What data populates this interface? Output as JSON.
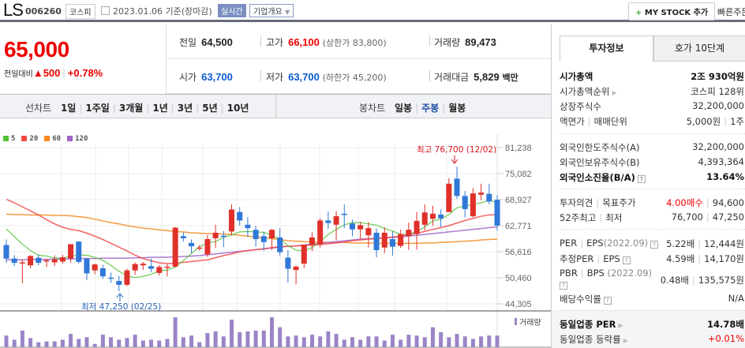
{
  "header": {
    "ticker": "LS",
    "code": "006260",
    "market": "코스피",
    "date": "2023.01.06",
    "date_suffix": "기준(장마감)",
    "realtime_label": "실시간",
    "company_label": "기업개요",
    "mystock_plus": "+",
    "mystock_label": "MY STOCK 추가",
    "quick_order": "빠른주문"
  },
  "price": {
    "current": "65,000",
    "change_label": "전일대비",
    "change_arrow": "▲",
    "change": "500",
    "change_pct": "+0.78%",
    "accent_color": "#e00000"
  },
  "summary": {
    "prev_label": "전일",
    "prev": "64,500",
    "high_label": "고가",
    "high": "66,100",
    "upper_limit_label": "(상한가",
    "upper_limit": "83,800)",
    "volume_label": "거래량",
    "volume": "89,473",
    "open_label": "시가",
    "open": "63,700",
    "low_label": "저가",
    "low": "63,700",
    "lower_limit_label": "(하한가",
    "lower_limit": "45,200)",
    "amount_label": "거래대금",
    "amount": "5,829",
    "amount_unit": "백만"
  },
  "chart_tabs": {
    "line_label": "선차트",
    "line_periods": [
      "1일",
      "1주일",
      "3개월",
      "1년",
      "3년",
      "5년",
      "10년"
    ],
    "candle_label": "봉차트",
    "candle_periods": [
      "일봉",
      "주봉",
      "월봉"
    ],
    "active_candle": "주봉"
  },
  "chart_data": {
    "type": "candlestick",
    "title": "LS 주봉",
    "legend": [
      {
        "name": "5",
        "color": "#52c234"
      },
      {
        "name": "20",
        "color": "#f04848"
      },
      {
        "name": "60",
        "color": "#f5891f"
      },
      {
        "name": "120",
        "color": "#a062c8"
      }
    ],
    "y_ticks": [
      "81,238",
      "75,082",
      "68,927",
      "62,771",
      "56,616",
      "50,460",
      "44,305"
    ],
    "ylim": [
      44305,
      81238
    ],
    "high_annotation": "최고 76,700 (12/02)",
    "low_annotation": "최저 47,250 (02/25)",
    "volume_label": "거래량",
    "up_color": "#e0302a",
    "down_color": "#2f78d8",
    "volume_color": "#9b84c6",
    "candles": [
      [
        58200,
        59500,
        54000,
        55000
      ],
      [
        55000,
        55800,
        53200,
        54000
      ],
      [
        54000,
        54700,
        49200,
        54100
      ],
      [
        53400,
        55800,
        52700,
        55600
      ],
      [
        55200,
        56000,
        53400,
        54000
      ],
      [
        54300,
        55000,
        53000,
        54600
      ],
      [
        54100,
        55800,
        53200,
        54800
      ],
      [
        54300,
        55900,
        53800,
        55300
      ],
      [
        55000,
        58000,
        54000,
        58400
      ],
      [
        59000,
        59100,
        53800,
        54200
      ],
      [
        55000,
        55200,
        49900,
        51500
      ],
      [
        52200,
        53800,
        51300,
        53600
      ],
      [
        52700,
        53500,
        50200,
        50800
      ],
      [
        50500,
        51700,
        49300,
        50300
      ],
      [
        49700,
        50900,
        47250,
        48800
      ],
      [
        48800,
        52600,
        48500,
        52200
      ],
      [
        52200,
        54100,
        51200,
        53700
      ],
      [
        53400,
        54200,
        52300,
        53800
      ],
      [
        53200,
        55000,
        51800,
        52600
      ],
      [
        51600,
        53500,
        51000,
        53000
      ],
      [
        53000,
        53700,
        50800,
        53100
      ],
      [
        53100,
        62500,
        52900,
        62300
      ],
      [
        60300,
        61200,
        59000,
        59800
      ],
      [
        58700,
        59500,
        56300,
        57900
      ],
      [
        57400,
        58200,
        56900,
        57600
      ],
      [
        56000,
        60500,
        55400,
        59600
      ],
      [
        59800,
        63000,
        57500,
        61100
      ],
      [
        60400,
        61500,
        57700,
        60200
      ],
      [
        61400,
        67800,
        60500,
        66600
      ],
      [
        66000,
        67200,
        62800,
        64000
      ],
      [
        63000,
        64800,
        60100,
        62200
      ],
      [
        61800,
        62700,
        57800,
        59600
      ],
      [
        60300,
        61400,
        56800,
        58900
      ],
      [
        59800,
        62000,
        57000,
        61800
      ],
      [
        60000,
        62200,
        55700,
        56500
      ],
      [
        55200,
        57000,
        49300,
        52600
      ],
      [
        52300,
        53300,
        48900,
        53100
      ],
      [
        53800,
        58000,
        52800,
        58300
      ],
      [
        58200,
        61200,
        56800,
        60000
      ],
      [
        58400,
        64500,
        57600,
        64000
      ],
      [
        64000,
        66100,
        62000,
        63400
      ],
      [
        63000,
        66200,
        59300,
        65000
      ],
      [
        65600,
        67800,
        62200,
        65300
      ],
      [
        63300,
        64200,
        60300,
        61900
      ],
      [
        61900,
        63700,
        59700,
        62900
      ],
      [
        60500,
        63600,
        57600,
        62200
      ],
      [
        61100,
        62100,
        55300,
        57000
      ],
      [
        57600,
        62400,
        56300,
        61100
      ],
      [
        59600,
        61400,
        55700,
        57800
      ],
      [
        58000,
        61800,
        57500,
        60800
      ],
      [
        60300,
        63500,
        57000,
        61800
      ],
      [
        60800,
        66000,
        57100,
        63900
      ],
      [
        63000,
        67800,
        61600,
        65900
      ],
      [
        64400,
        67500,
        62700,
        65600
      ],
      [
        65400,
        66600,
        62500,
        64500
      ],
      [
        66000,
        74000,
        66500,
        72700
      ],
      [
        73900,
        76700,
        69100,
        69800
      ],
      [
        69800,
        71000,
        64800,
        66700
      ],
      [
        65000,
        71700,
        64700,
        70400
      ],
      [
        70100,
        72700,
        68800,
        70600
      ],
      [
        70300,
        72700,
        67800,
        68500
      ],
      [
        68900,
        70000,
        61600,
        62800
      ]
    ],
    "ma5": [
      62000,
      60200,
      58400,
      56900,
      55800,
      55600,
      55100,
      55100,
      55600,
      55800,
      55800,
      55300,
      54600,
      53400,
      52000,
      50900,
      50500,
      50800,
      51300,
      52100,
      52300,
      53000,
      54500,
      56200,
      57800,
      58700,
      59000,
      60000,
      60600,
      61300,
      61400,
      61300,
      61200,
      60500,
      59600,
      58100,
      57000,
      56800,
      57600,
      59000,
      60700,
      61900,
      63000,
      63500,
      63500,
      63200,
      62900,
      62100,
      61500,
      60700,
      60800,
      61300,
      62500,
      63900,
      64300,
      65400,
      67000,
      67400,
      67800,
      68200,
      68700,
      68200
    ],
    "ma20": [
      69000,
      68200,
      67200,
      66300,
      65300,
      64200,
      63200,
      62400,
      61900,
      61600,
      61000,
      60300,
      59500,
      58600,
      57700,
      56800,
      55800,
      55000,
      54500,
      54000,
      53800,
      53900,
      54100,
      54300,
      54500,
      54700,
      55200,
      55700,
      56100,
      56600,
      56900,
      57100,
      57300,
      57600,
      57800,
      57900,
      58000,
      58100,
      58200,
      58300,
      58500,
      58700,
      58900,
      59200,
      59400,
      59600,
      59700,
      59900,
      60100,
      60300,
      60600,
      61000,
      61400,
      61900,
      62300,
      62800,
      63400,
      64000,
      64500,
      65000,
      65300,
      65400
    ],
    "ma60": [
      65500,
      65400,
      65400,
      65300,
      65300,
      65300,
      65200,
      65200,
      65100,
      64900,
      64700,
      64300,
      63900,
      63500,
      63200,
      62800,
      62500,
      62200,
      62000,
      61800,
      61600,
      61400,
      61300,
      61100,
      61000,
      60900,
      60900,
      60800,
      60700,
      60500,
      60300,
      60100,
      59900,
      59700,
      59500,
      59200,
      59100,
      59000,
      58900,
      58900,
      58800,
      58800,
      58800,
      58700,
      58700,
      58700,
      58600,
      58600,
      58600,
      58600,
      58600,
      58600,
      58700,
      58700,
      58800,
      58900,
      59000,
      59100,
      59200,
      59400,
      59500,
      59600
    ],
    "ma120": [
      54700,
      54700,
      54700,
      54800,
      54800,
      54800,
      54900,
      54900,
      54900,
      55000,
      55000,
      55000,
      55100,
      55100,
      55100,
      55100,
      55200,
      55200,
      55300,
      55300,
      55300,
      55400,
      55500,
      55600,
      55700,
      55900,
      56100,
      56300,
      56500,
      56700,
      56900,
      57100,
      57300,
      57500,
      57700,
      57900,
      58000,
      58200,
      58400,
      58600,
      58800,
      59000,
      59200,
      59400,
      59600,
      59700,
      59800,
      59900,
      60000,
      60100,
      60300,
      60500,
      60700,
      60900,
      61100,
      61300,
      61500,
      61700,
      61900,
      62100,
      62300,
      62500
    ],
    "volume": [
      14,
      9,
      20,
      11,
      6,
      7,
      7,
      9,
      16,
      10,
      12,
      4,
      15,
      12,
      9,
      11,
      15,
      8,
      9,
      8,
      10,
      36,
      12,
      14,
      6,
      17,
      19,
      13,
      33,
      18,
      19,
      20,
      20,
      36,
      24,
      13,
      14,
      12,
      15,
      13,
      19,
      16,
      9,
      12,
      9,
      13,
      13,
      8,
      15,
      9,
      15,
      14,
      12,
      24,
      18,
      12,
      16,
      13,
      10,
      13,
      14,
      14
    ]
  },
  "side": {
    "tab_invest": "투자정보",
    "tab_orderbook": "호가 10단계",
    "market_cap_label": "시가총액",
    "market_cap": "2조 930억원",
    "cap_rank_label": "시가총액순위",
    "cap_rank": "코스피 128위",
    "shares_label": "상장주식수",
    "shares": "32,200,000",
    "par_label": "액면가",
    "unit_label": "매매단위",
    "par": "5,000원",
    "unit": "1주",
    "foreign_limit_label": "외국인한도주식수(A)",
    "foreign_limit": "32,200,000",
    "foreign_hold_label": "외국인보유주식수(B)",
    "foreign_hold": "4,393,364",
    "foreign_ratio_label": "외국인소진율(B/A)",
    "foreign_ratio": "13.64%",
    "opinion_label": "투자의견",
    "target_label": "목표주가",
    "opinion": "4.00매수",
    "target": "94,600",
    "w52_high_label": "52주최고",
    "w52_low_label": "최저",
    "w52_high": "76,700",
    "w52_low": "47,250",
    "per_label": "PER",
    "eps_label": "EPS",
    "eps_period": "(2022.09)",
    "per": "5.22배",
    "eps": "12,444원",
    "est_per_label": "추정PER",
    "est_eps_label": "EPS",
    "est_per": "4.59배",
    "est_eps": "14,170원",
    "pbr_label": "PBR",
    "bps_label": "BPS",
    "bps_period": "(2022.09)",
    "pbr": "0.48배",
    "bps": "135,575원",
    "dividend_label": "배당수익률",
    "dividend": "N/A",
    "industry_per_label": "동일업종 PER",
    "industry_per": "14.78배",
    "industry_chg_label": "동일업종 등락률",
    "industry_chg": "+0.01%"
  }
}
